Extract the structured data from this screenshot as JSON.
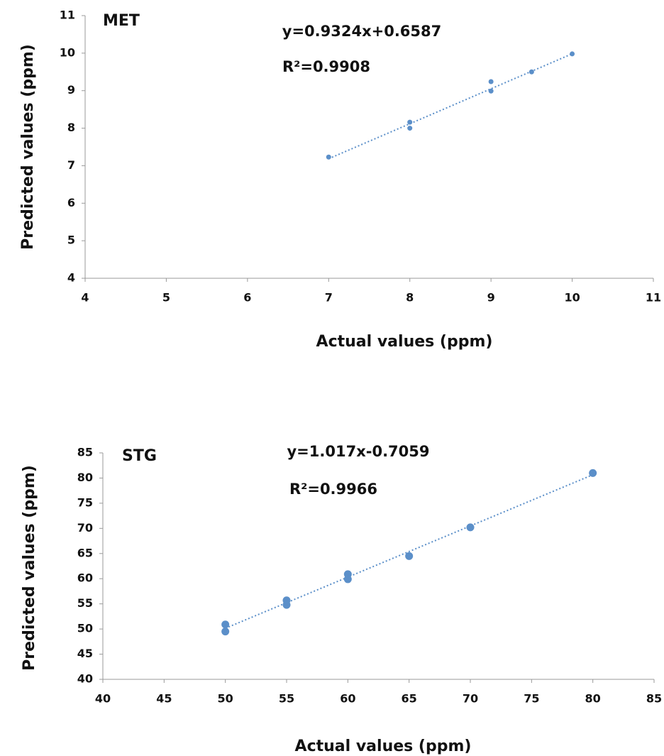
{
  "chart_data": [
    {
      "type": "scatter",
      "title": "MET",
      "annotations": [
        "y=0.9324x+0.6587",
        "R²=0.9908"
      ],
      "x_label": "Actual values (ppm)",
      "y_label": "Predicted values (ppm)",
      "x": [
        7,
        8,
        8,
        9,
        9,
        9.5,
        10
      ],
      "values": [
        7.23,
        8.16,
        8.0,
        9.24,
        8.99,
        9.5,
        9.98
      ],
      "color": "#5b8fc9",
      "trendline": {
        "x": [
          7,
          10
        ],
        "values": [
          7.1855,
          9.9827
        ]
      },
      "xlim": [
        4,
        11
      ],
      "xticks": [
        4,
        5,
        6,
        7,
        8,
        9,
        10,
        11
      ],
      "ylim": [
        4,
        11
      ],
      "yticks": [
        4,
        5,
        6,
        7,
        8,
        9,
        10,
        11
      ],
      "grid": false
    },
    {
      "type": "scatter",
      "title": "STG",
      "annotations": [
        "y=1.017x-0.7059",
        "R²=0.9966"
      ],
      "x_label": "Actual values (ppm)",
      "y_label": "Predicted values (ppm)",
      "x": [
        50,
        50,
        55,
        55,
        60,
        60,
        65,
        70,
        80
      ],
      "values": [
        50.9,
        49.5,
        55.7,
        54.8,
        60.9,
        59.9,
        64.5,
        70.2,
        81.0
      ],
      "color": "#5b8fc9",
      "trendline": {
        "x": [
          50,
          80
        ],
        "values": [
          50.1441,
          80.6541
        ]
      },
      "xlim": [
        40,
        85
      ],
      "xticks": [
        40,
        45,
        50,
        55,
        60,
        65,
        70,
        75,
        80,
        85
      ],
      "ylim": [
        40,
        85
      ],
      "yticks": [
        40,
        45,
        50,
        55,
        60,
        65,
        70,
        75,
        80,
        85
      ],
      "grid": false
    }
  ]
}
